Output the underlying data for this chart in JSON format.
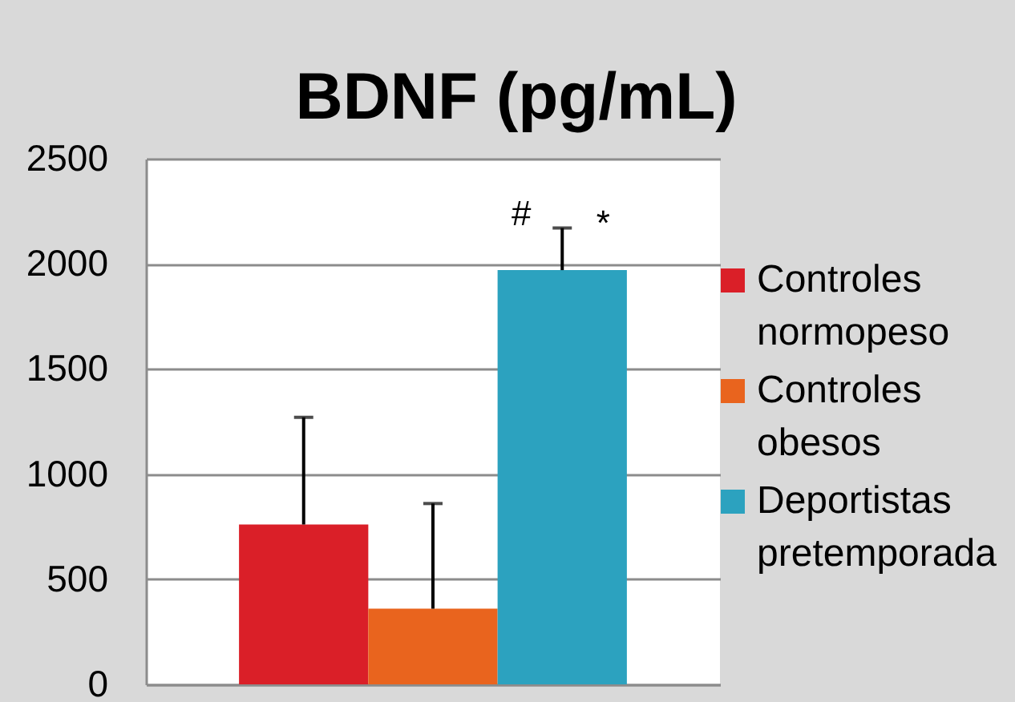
{
  "chart_data": {
    "type": "bar",
    "title": "BDNF (pg/mL)",
    "categories": [
      null
    ],
    "series": [
      {
        "name": "Controles normopeso",
        "color": "#da1f28",
        "values": [
          760
        ],
        "errors": [
          [
            760,
            1270
          ]
        ]
      },
      {
        "name": "Controles obesos",
        "color": "#e9641e",
        "values": [
          360
        ],
        "errors": [
          [
            360,
            860
          ]
        ]
      },
      {
        "name": "Deportistas pretemporada",
        "color": "#2ca2bf",
        "values": [
          1970
        ],
        "errors": [
          [
            1970,
            2170
          ]
        ]
      }
    ],
    "ylim": [
      0,
      2500
    ],
    "yticks": [
      0,
      500,
      1000,
      1500,
      2000,
      2500
    ],
    "grid": "y",
    "legend": "right",
    "tick_labels": "y",
    "annotations": [
      "#",
      "*"
    ]
  }
}
